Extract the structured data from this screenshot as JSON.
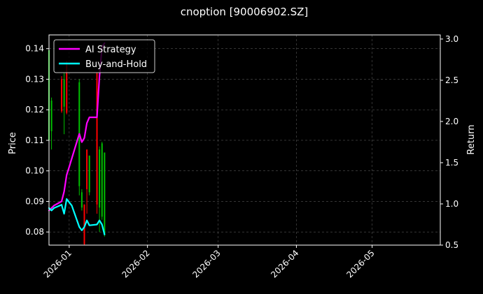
{
  "chart_data": {
    "type": "line",
    "title": "cnoption [90006902.SZ]",
    "xlabel": "",
    "ylabel": "Price",
    "ylabel_right": "Return",
    "x_range": [
      "2025-12-24",
      "2026-05-28"
    ],
    "ylim": [
      0.0757,
      0.1445
    ],
    "ylim_right": [
      0.5,
      3.05
    ],
    "x_ticks": [
      "2026-01",
      "2026-02",
      "2026-03",
      "2026-04",
      "2026-05"
    ],
    "y_ticks": [
      "0.08",
      "0.09",
      "0.10",
      "0.11",
      "0.12",
      "0.13",
      "0.14"
    ],
    "y_ticks_right": [
      "0.5",
      "1.0",
      "1.5",
      "2.0",
      "2.5",
      "3.0"
    ],
    "grid": true,
    "legend_position": "top-left",
    "colors": {
      "background": "#000000",
      "axes": "#ffffff",
      "grid": "#555555",
      "candle_up": "#00c000",
      "candle_down": "#ff0000"
    },
    "candles": [
      {
        "date": "2025-12-24",
        "open": 0.11,
        "close": 0.1395,
        "high": 0.142,
        "low": 0.108,
        "up": true
      },
      {
        "date": "2025-12-25",
        "open": 0.113,
        "close": 0.123,
        "high": 0.124,
        "low": 0.107,
        "up": true
      },
      {
        "date": "2025-12-29",
        "open": 0.13,
        "close": 0.1195,
        "high": 0.131,
        "low": 0.119,
        "up": false
      },
      {
        "date": "2025-12-30",
        "open": 0.121,
        "close": 0.13,
        "high": 0.132,
        "low": 0.112,
        "up": true
      },
      {
        "date": "2025-12-31",
        "open": 0.135,
        "close": 0.119,
        "high": 0.136,
        "low": 0.1185,
        "up": false
      },
      {
        "date": "2026-01-05",
        "open": 0.095,
        "close": 0.129,
        "high": 0.13,
        "low": 0.092,
        "up": true
      },
      {
        "date": "2026-01-06",
        "open": 0.088,
        "close": 0.093,
        "high": 0.094,
        "low": 0.087,
        "up": true
      },
      {
        "date": "2026-01-07",
        "open": 0.089,
        "close": 0.076,
        "high": 0.089,
        "low": 0.0757,
        "up": false
      },
      {
        "date": "2026-01-08",
        "open": 0.107,
        "close": 0.094,
        "high": 0.107,
        "low": 0.086,
        "up": false
      },
      {
        "date": "2026-01-09",
        "open": 0.093,
        "close": 0.105,
        "high": 0.105,
        "low": 0.092,
        "up": true
      },
      {
        "date": "2026-01-12",
        "open": 0.132,
        "close": 0.089,
        "high": 0.132,
        "low": 0.086,
        "up": false
      },
      {
        "date": "2026-01-13",
        "open": 0.088,
        "close": 0.107,
        "high": 0.108,
        "low": 0.08,
        "up": true
      },
      {
        "date": "2026-01-14",
        "open": 0.085,
        "close": 0.109,
        "high": 0.1095,
        "low": 0.084,
        "up": true
      },
      {
        "date": "2026-01-15",
        "open": 0.079,
        "close": 0.106,
        "high": 0.106,
        "low": 0.0785,
        "up": true
      }
    ],
    "series": [
      {
        "name": "AI Strategy",
        "color": "#ff00ff",
        "x": [
          "2025-12-24",
          "2025-12-25",
          "2025-12-26",
          "2025-12-29",
          "2025-12-30",
          "2025-12-31",
          "2026-01-01",
          "2026-01-02",
          "2026-01-05",
          "2026-01-06",
          "2026-01-07",
          "2026-01-08",
          "2026-01-09",
          "2026-01-12",
          "2026-01-13",
          "2026-01-14",
          "2026-01-15"
        ],
        "values": [
          0.92,
          0.95,
          0.98,
          1.03,
          1.15,
          1.35,
          1.45,
          1.55,
          1.85,
          1.75,
          1.8,
          1.98,
          2.05,
          2.05,
          2.55,
          2.9,
          2.95
        ]
      },
      {
        "name": "Buy-and-Hold",
        "color": "#00ffff",
        "x": [
          "2025-12-24",
          "2025-12-25",
          "2025-12-26",
          "2025-12-29",
          "2025-12-30",
          "2025-12-31",
          "2026-01-02",
          "2026-01-05",
          "2026-01-06",
          "2026-01-07",
          "2026-01-08",
          "2026-01-09",
          "2026-01-12",
          "2026-01-13",
          "2026-01-14",
          "2026-01-15"
        ],
        "values": [
          0.95,
          0.92,
          0.95,
          0.99,
          0.88,
          1.06,
          0.98,
          0.72,
          0.68,
          0.72,
          0.8,
          0.74,
          0.75,
          0.8,
          0.75,
          0.63
        ]
      }
    ]
  }
}
